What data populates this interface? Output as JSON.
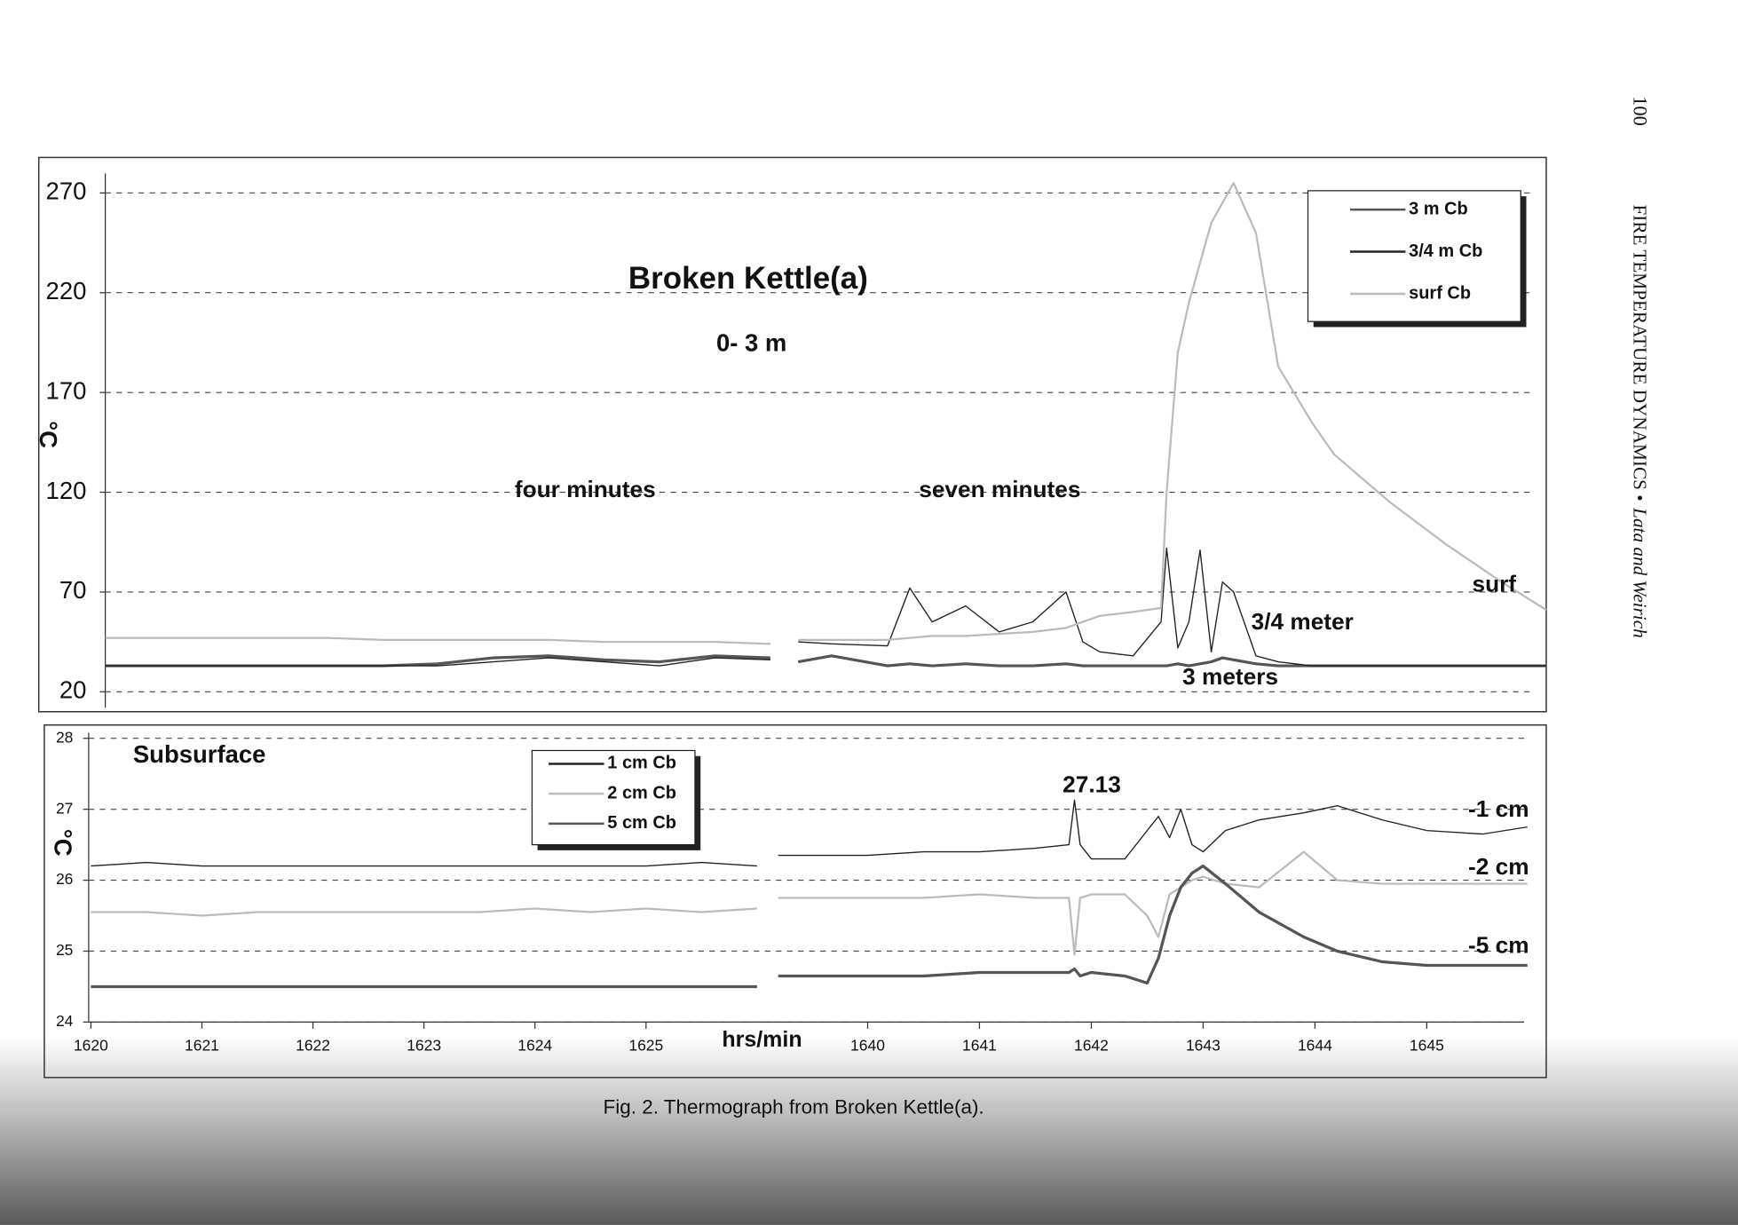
{
  "page": {
    "number": "100",
    "running_head": "FIRE TEMPERATURE DYNAMICS •",
    "authors": "Lata and Weirich"
  },
  "caption": "Fig. 2.  Thermograph from Broken Kettle(a).",
  "chart_data": [
    {
      "type": "line",
      "title": "Broken Kettle(a)",
      "subtitle": "0- 3 m",
      "ylabel": "°C",
      "annotations": [
        "four minutes",
        "seven minutes",
        "surf",
        "3/4 meter",
        "3 meters"
      ],
      "xsegments": [
        [
          1620,
          1626
        ],
        [
          1639.1,
          1645.9
        ]
      ],
      "x": [
        1620,
        1620.5,
        1621,
        1621.5,
        1622,
        1622.5,
        1623,
        1623.5,
        1624,
        1624.5,
        1625,
        1625.5,
        1626,
        1639.1,
        1639.2,
        1639.5,
        1640,
        1640.2,
        1640.4,
        1640.7,
        1641,
        1641.3,
        1641.6,
        1641.75,
        1641.9,
        1642.2,
        1642.45,
        1642.5,
        1642.6,
        1642.7,
        1642.8,
        1642.9,
        1643,
        1643.1,
        1643.3,
        1643.5,
        1643.8,
        1644,
        1644.5,
        1645,
        1645.5,
        1645.9
      ],
      "series": [
        {
          "name": "3 m Cb",
          "color": "#555555",
          "values": [
            33,
            33,
            33,
            33,
            33,
            33,
            34,
            37,
            38,
            36,
            35,
            38,
            37,
            null,
            35,
            38,
            33,
            34,
            33,
            34,
            33,
            33,
            34,
            33,
            33,
            33,
            33,
            33,
            34,
            33,
            34,
            35,
            37,
            36,
            34,
            33,
            33,
            33,
            33,
            33,
            33,
            33
          ]
        },
        {
          "name": "3/4 m Cb",
          "color": "#222222",
          "values": [
            33,
            33,
            33,
            33,
            33,
            33,
            33,
            35,
            37,
            35,
            33,
            37,
            36,
            null,
            45,
            44,
            43,
            72,
            55,
            63,
            50,
            55,
            70,
            45,
            40,
            38,
            55,
            92,
            42,
            55,
            91,
            40,
            75,
            70,
            38,
            35,
            33,
            33,
            33,
            33,
            33,
            33
          ]
        },
        {
          "name": "surf Cb",
          "color": "#bbbbbb",
          "values": [
            47,
            47,
            47,
            47,
            47,
            46,
            46,
            46,
            46,
            45,
            45,
            45,
            44,
            null,
            46,
            46,
            46,
            47,
            48,
            48,
            49,
            50,
            52,
            55,
            58,
            60,
            62,
            120,
            190,
            215,
            235,
            255,
            265,
            275,
            250,
            183,
            155,
            139,
            115,
            94,
            75,
            61
          ]
        }
      ],
      "ylim": [
        12,
        277
      ],
      "yticks": [
        20,
        70,
        120,
        170,
        220,
        270
      ],
      "grid": true,
      "legend": "top-right"
    },
    {
      "type": "line",
      "title": "Subsurface",
      "ylabel": "°C",
      "xlabel": "hrs/min",
      "annotations": [
        "27.13",
        "-1 cm",
        "-2 cm",
        "-5 cm"
      ],
      "xsegments": [
        [
          1620,
          1626
        ],
        [
          1639.1,
          1645.9
        ]
      ],
      "xticks": [
        1620,
        1621,
        1622,
        1623,
        1624,
        1625,
        1640,
        1641,
        1642,
        1643,
        1644,
        1645
      ],
      "x": [
        1620,
        1620.5,
        1621,
        1621.5,
        1622,
        1622.5,
        1623,
        1623.5,
        1624,
        1624.5,
        1625,
        1625.5,
        1626,
        1639.1,
        1639.2,
        1639.6,
        1640,
        1640.5,
        1641,
        1641.5,
        1641.8,
        1641.85,
        1641.9,
        1642,
        1642.3,
        1642.5,
        1642.6,
        1642.7,
        1642.8,
        1642.9,
        1643,
        1643.2,
        1643.5,
        1643.9,
        1644.2,
        1644.6,
        1645,
        1645.5,
        1645.9
      ],
      "series": [
        {
          "name": "1 cm Cb",
          "color": "#222222",
          "values": [
            26.2,
            26.25,
            26.2,
            26.2,
            26.2,
            26.2,
            26.2,
            26.2,
            26.2,
            26.2,
            26.2,
            26.25,
            26.2,
            null,
            26.35,
            26.35,
            26.35,
            26.4,
            26.4,
            26.45,
            26.5,
            27.13,
            26.5,
            26.3,
            26.3,
            26.7,
            26.9,
            26.6,
            27.0,
            26.5,
            26.4,
            26.7,
            26.85,
            26.95,
            27.05,
            26.85,
            26.7,
            26.65,
            26.75
          ]
        },
        {
          "name": "2 cm Cb",
          "color": "#bbbbbb",
          "values": [
            25.55,
            25.55,
            25.5,
            25.55,
            25.55,
            25.55,
            25.55,
            25.55,
            25.6,
            25.55,
            25.6,
            25.55,
            25.6,
            null,
            25.75,
            25.75,
            25.75,
            25.75,
            25.8,
            25.75,
            25.75,
            24.95,
            25.75,
            25.8,
            25.8,
            25.5,
            25.2,
            25.8,
            25.9,
            26.0,
            26.05,
            25.95,
            25.9,
            26.4,
            26.0,
            25.95,
            25.95,
            25.95,
            25.95
          ]
        },
        {
          "name": "5 cm Cb",
          "color": "#555555",
          "values": [
            24.5,
            24.5,
            24.5,
            24.5,
            24.5,
            24.5,
            24.5,
            24.5,
            24.5,
            24.5,
            24.5,
            24.5,
            24.5,
            null,
            24.65,
            24.65,
            24.65,
            24.65,
            24.7,
            24.7,
            24.7,
            24.75,
            24.65,
            24.7,
            24.65,
            24.55,
            24.9,
            25.5,
            25.9,
            26.1,
            26.2,
            25.95,
            25.55,
            25.2,
            25.0,
            24.85,
            24.8,
            24.8,
            24.8
          ]
        }
      ],
      "ylim": [
        24,
        28
      ],
      "yticks": [
        24,
        25,
        26,
        27,
        28
      ],
      "grid": true,
      "legend": "top-left"
    }
  ]
}
